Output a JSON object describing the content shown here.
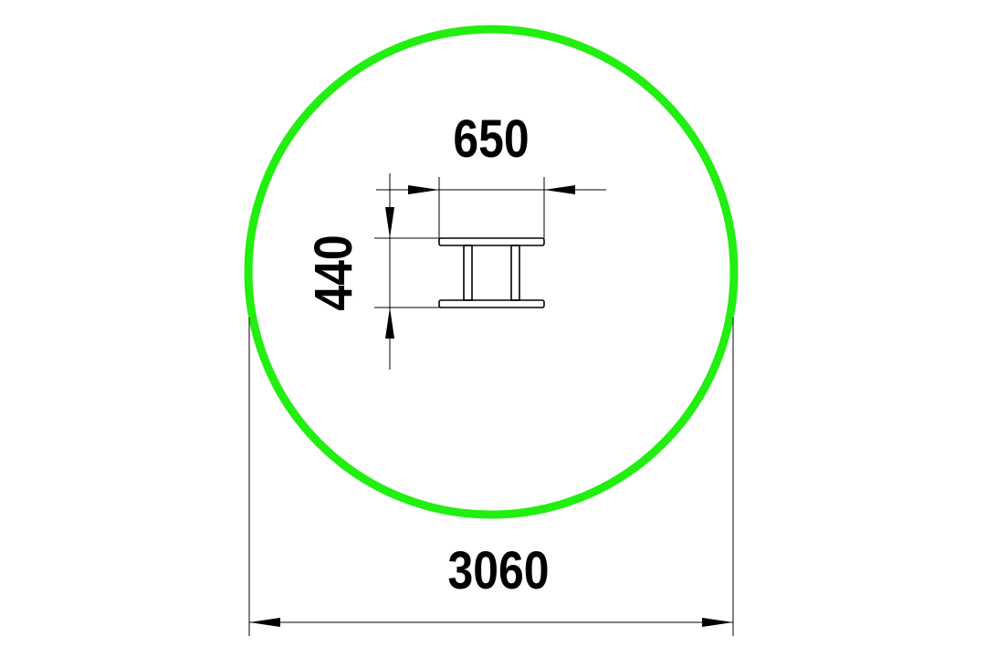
{
  "dimensions": {
    "bench_width": "650",
    "bench_depth": "440",
    "zone_diameter": "3060"
  },
  "colors": {
    "safety_zone": "#22ee11",
    "lines": "#000000",
    "background": "#ffffff"
  }
}
